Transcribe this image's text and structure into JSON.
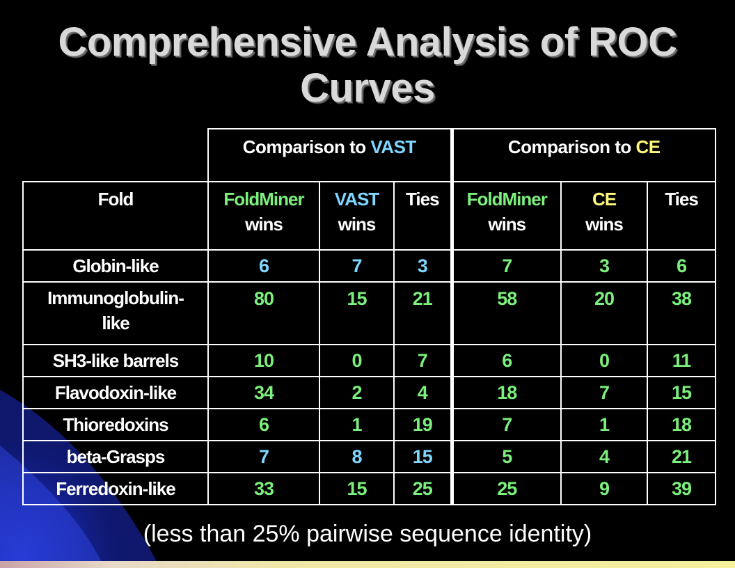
{
  "slide": {
    "title_line1": "Comprehensive Analysis of ROC",
    "title_line2": "Curves",
    "footnote": "(less than 25% pairwise sequence identity)"
  },
  "colors": {
    "background": "#000000",
    "foldminer": "#7cf07c",
    "vast": "#7fd6ff",
    "ce": "#fff97a",
    "title": "#d9d9d9"
  },
  "table": {
    "groups": [
      {
        "prefix": "Comparison to ",
        "name": "VAST"
      },
      {
        "prefix": "Comparison to ",
        "name": "CE"
      }
    ],
    "fold_header": "Fold",
    "vast_cols": [
      {
        "line1": "FoldMiner",
        "line2": "wins"
      },
      {
        "line1": "VAST",
        "line2": "wins"
      },
      {
        "line1": "Ties",
        "line2": ""
      }
    ],
    "ce_cols": [
      {
        "line1": "FoldMiner",
        "line2": "wins"
      },
      {
        "line1": "CE",
        "line2": "wins"
      },
      {
        "line1": "Ties",
        "line2": ""
      }
    ],
    "rows": [
      {
        "label": "Globin-like",
        "vast": [
          "6",
          "7",
          "3"
        ],
        "ce": [
          "7",
          "3",
          "6"
        ]
      },
      {
        "label": "Immunoglobulin-like",
        "label_line1": "Immunoglobulin-",
        "label_line2": "like",
        "vast": [
          "80",
          "15",
          "21"
        ],
        "ce": [
          "58",
          "20",
          "38"
        ]
      },
      {
        "label": "SH3-like barrels",
        "vast": [
          "10",
          "0",
          "7"
        ],
        "ce": [
          "6",
          "0",
          "11"
        ]
      },
      {
        "label": "Flavodoxin-like",
        "vast": [
          "34",
          "2",
          "4"
        ],
        "ce": [
          "18",
          "7",
          "15"
        ]
      },
      {
        "label": "Thioredoxins",
        "vast": [
          "6",
          "1",
          "19"
        ],
        "ce": [
          "7",
          "1",
          "18"
        ]
      },
      {
        "label": "beta-Grasps",
        "vast": [
          "7",
          "8",
          "15"
        ],
        "ce": [
          "5",
          "4",
          "21"
        ]
      },
      {
        "label": "Ferredoxin-like",
        "vast": [
          "33",
          "15",
          "25"
        ],
        "ce": [
          "25",
          "9",
          "39"
        ]
      }
    ]
  }
}
